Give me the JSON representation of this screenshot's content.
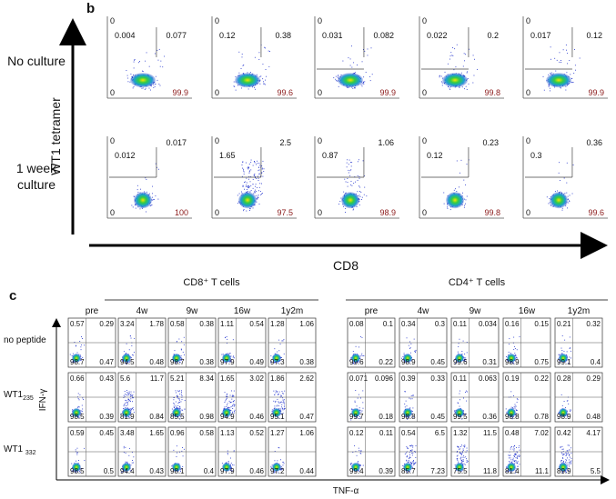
{
  "panel_b": {
    "label": "b",
    "y_axis": "WT1 tetramer",
    "x_axis": "CD8",
    "rows": [
      {
        "label": "No culture",
        "plots": [
          {
            "top_left": "0",
            "upper": "0.004",
            "upper_right": "0.077",
            "bottom_left": "0",
            "bottom_right": "99.9"
          },
          {
            "top_left": "0",
            "upper": "0.12",
            "upper_right": "0.38",
            "bottom_left": "0",
            "bottom_right": "99.6"
          },
          {
            "top_left": "0",
            "upper": "0.031",
            "upper_right": "0.082",
            "bottom_left": "0",
            "bottom_right": "99.9"
          },
          {
            "top_left": "0",
            "upper": "0.022",
            "upper_right": "0.2",
            "bottom_left": "0",
            "bottom_right": "99.8"
          },
          {
            "top_left": "0",
            "upper": "0.017",
            "upper_right": "0.12",
            "bottom_left": "0",
            "bottom_right": "99.9"
          }
        ]
      },
      {
        "label": "1 week culture",
        "plots": [
          {
            "top_left": "0",
            "upper": "0.012",
            "upper_right": "0.017",
            "bottom_left": "0",
            "bottom_right": "100"
          },
          {
            "top_left": "0",
            "upper": "1.65",
            "upper_right": "2.5",
            "bottom_left": "0",
            "bottom_right": "97.5"
          },
          {
            "top_left": "0",
            "upper": "0.87",
            "upper_right": "1.06",
            "bottom_left": "0",
            "bottom_right": "98.9"
          },
          {
            "top_left": "0",
            "upper": "0.12",
            "upper_right": "0.23",
            "bottom_left": "0",
            "bottom_right": "99.8"
          },
          {
            "top_left": "0",
            "upper": "0.3",
            "upper_right": "0.36",
            "bottom_left": "0",
            "bottom_right": "99.6"
          }
        ]
      }
    ]
  },
  "panel_c": {
    "label": "c",
    "y_axis": "IFN-γ",
    "x_axis": "TNF-α",
    "columns": [
      "pre",
      "4w",
      "9w",
      "16w",
      "1y2m"
    ],
    "row_labels": [
      {
        "label": "no peptide"
      },
      {
        "label": "WT1",
        "subscript": "235"
      },
      {
        "label": "WT1 ",
        "subscript": "332"
      }
    ],
    "groups": [
      {
        "title": "CD8⁺ T cells",
        "rows": [
          [
            [
              "0.57",
              "0.29",
              "98.7",
              "0.47"
            ],
            [
              "3.24",
              "1.78",
              "94.5",
              "0.48"
            ],
            [
              "0.58",
              "0.38",
              "98.7",
              "0.38"
            ],
            [
              "1.11",
              "0.54",
              "97.9",
              "0.49"
            ],
            [
              "1.28",
              "1.06",
              "97.3",
              "0.38"
            ]
          ],
          [
            [
              "0.66",
              "0.43",
              "98.5",
              "0.39"
            ],
            [
              "5.6",
              "11.7",
              "81.9",
              "0.84"
            ],
            [
              "5.21",
              "8.34",
              "85.5",
              "0.98"
            ],
            [
              "1.65",
              "3.02",
              "94.9",
              "0.46"
            ],
            [
              "1.86",
              "2.62",
              "95.1",
              "0.47"
            ]
          ],
          [
            [
              "0.59",
              "0.45",
              "98.5",
              "0.5"
            ],
            [
              "3.48",
              "1.65",
              "94.4",
              "0.43"
            ],
            [
              "0.96",
              "0.58",
              "98.1",
              "0.4"
            ],
            [
              "1.13",
              "0.52",
              "97.9",
              "0.46"
            ],
            [
              "1.27",
              "1.06",
              "97.2",
              "0.44"
            ]
          ]
        ]
      },
      {
        "title": "CD4⁺ T cells",
        "rows": [
          [
            [
              "0.08",
              "0.1",
              "99.6",
              "0.22"
            ],
            [
              "0.34",
              "0.3",
              "98.9",
              "0.45"
            ],
            [
              "0.11",
              "0.034",
              "99.6",
              "0.31"
            ],
            [
              "0.16",
              "0.15",
              "98.9",
              "0.75"
            ],
            [
              "0.21",
              "0.32",
              "99.1",
              "0.4"
            ]
          ],
          [
            [
              "0.071",
              "0.096",
              "99.7",
              "0.18"
            ],
            [
              "0.39",
              "0.33",
              "98.8",
              "0.45"
            ],
            [
              "0.11",
              "0.063",
              "99.5",
              "0.36"
            ],
            [
              "0.19",
              "0.22",
              "98.8",
              "0.78"
            ],
            [
              "0.28",
              "0.29",
              "98.9",
              "0.48"
            ]
          ],
          [
            [
              "0.12",
              "0.11",
              "99.4",
              "0.39"
            ],
            [
              "0.54",
              "6.5",
              "85.7",
              "7.23"
            ],
            [
              "1.32",
              "11.5",
              "75.5",
              "11.8"
            ],
            [
              "0.48",
              "7.02",
              "81.4",
              "11.1"
            ],
            [
              "0.42",
              "4.17",
              "89.9",
              "5.5"
            ]
          ]
        ]
      }
    ]
  }
}
